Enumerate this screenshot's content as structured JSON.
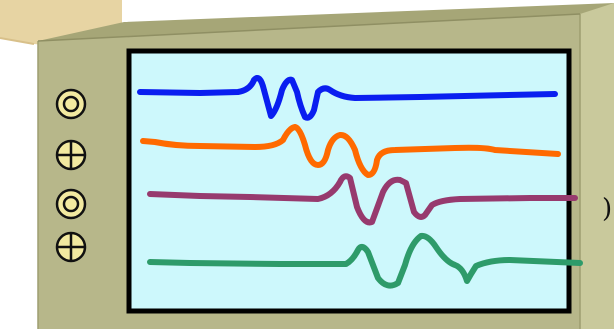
{
  "scene": {
    "colors": {
      "backdrop": "#e7d4a3",
      "cabinet_front": "#b7b78a",
      "cabinet_side": "#c9c99c",
      "cabinet_top": "#a6a677",
      "screen_fill": "#cdf8fc",
      "screen_frame": "#000000",
      "knob_fill": "#f2e9a0"
    },
    "controls": [
      {
        "kind": "concentric",
        "icon": "dial-knob-icon"
      },
      {
        "kind": "crosshair",
        "icon": "crosshair-knob-icon"
      },
      {
        "kind": "concentric",
        "icon": "dial-knob-icon"
      },
      {
        "kind": "crosshair",
        "icon": "crosshair-knob-icon"
      }
    ],
    "traces": [
      {
        "name_id": "blue",
        "color": "#0a1ef0"
      },
      {
        "name_id": "orange",
        "color": "#ff6a00"
      },
      {
        "name_id": "purple",
        "color": "#973a6e"
      },
      {
        "name_id": "green",
        "color": "#2e9b6a"
      }
    ],
    "edge_text": ")"
  }
}
